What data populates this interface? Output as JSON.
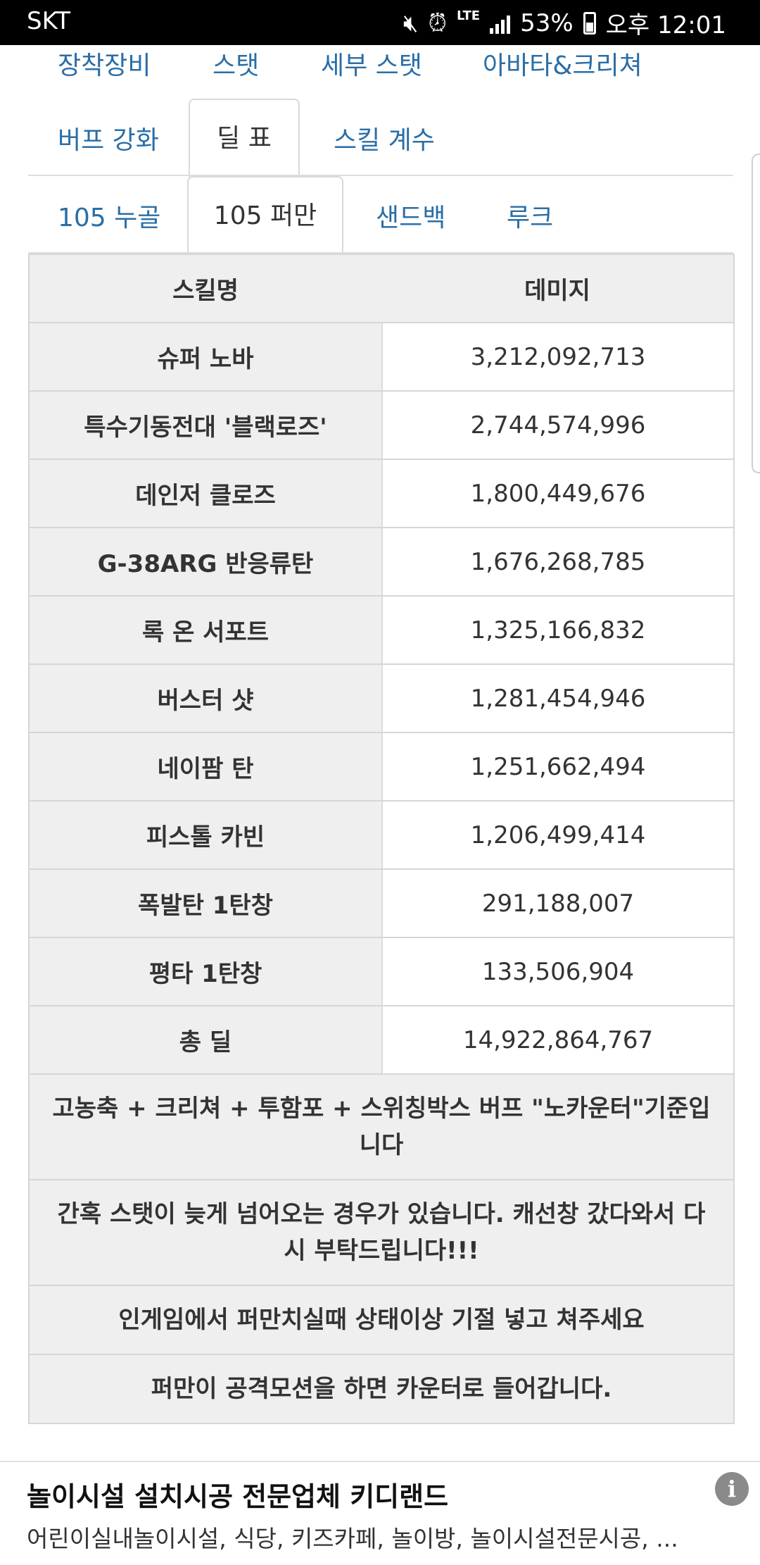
{
  "status_bar": {
    "carrier": "SKT",
    "network": "LTE",
    "battery": "53%",
    "time": "오후 12:01"
  },
  "tabs_row1": [
    "장착장비",
    "스탯",
    "세부 스탯",
    "아바타&크리쳐"
  ],
  "tabs_row2": [
    "버프 강화",
    "딜 표",
    "스킬 계수"
  ],
  "tabs_row3": [
    "105 누골",
    "105 퍼만",
    "샌드백",
    "루크"
  ],
  "table": {
    "headers": [
      "스킬명",
      "데미지"
    ],
    "rows": [
      {
        "skill": "슈퍼 노바",
        "damage": "3,212,092,713"
      },
      {
        "skill": "특수기동전대 '블랙로즈'",
        "damage": "2,744,574,996"
      },
      {
        "skill": "데인저 클로즈",
        "damage": "1,800,449,676"
      },
      {
        "skill": "G-38ARG 반응류탄",
        "damage": "1,676,268,785"
      },
      {
        "skill": "록 온 서포트",
        "damage": "1,325,166,832"
      },
      {
        "skill": "버스터 샷",
        "damage": "1,281,454,946"
      },
      {
        "skill": "네이팜 탄",
        "damage": "1,251,662,494"
      },
      {
        "skill": "피스톨 카빈",
        "damage": "1,206,499,414"
      },
      {
        "skill": "폭발탄 1탄창",
        "damage": "291,188,007"
      },
      {
        "skill": "평타 1탄창",
        "damage": "133,506,904"
      },
      {
        "skill": "총 딜",
        "damage": "14,922,864,767"
      }
    ],
    "notes": [
      "고농축 + 크리쳐 + 투함포 + 스위칭박스 버프 \"노카운터\"기준입니다",
      "간혹 스탯이 늦게 넘어오는 경우가 있습니다. 캐선창 갔다와서 다시 부탁드립니다!!!",
      "인게임에서 퍼만치실때 상태이상 기절 넣고 쳐주세요",
      "퍼만이 공격모션을 하면 카운터로 들어갑니다."
    ]
  },
  "ad": {
    "title": "놀이시설 설치시공 전문업체 키디랜드",
    "description": "어린이실내놀이시설, 식당, 키즈카페, 놀이방, 놀이시설전문시공, ...",
    "info_icon": "info-icon"
  }
}
